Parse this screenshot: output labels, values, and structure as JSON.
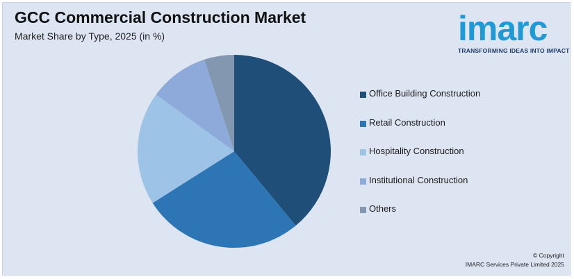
{
  "header": {
    "title": "GCC Commercial Construction Market",
    "subtitle": "Market Share by Type, 2025 (in %)"
  },
  "logo": {
    "word": "imarc",
    "tagline": "TRANSFORMING IDEAS INTO IMPACT",
    "color": "#1f9ad6",
    "tag_color": "#1f3a6e"
  },
  "chart_data": {
    "type": "pie",
    "title": "GCC Commercial Construction Market",
    "subtitle": "Market Share by Type, 2025 (in %)",
    "start_angle_deg": 0,
    "direction": "clockwise",
    "legend_position": "right",
    "slices": [
      {
        "label": "Office Building Construction",
        "value": 39,
        "color": "#1f4e79"
      },
      {
        "label": "Retail Construction",
        "value": 27,
        "color": "#2e75b6"
      },
      {
        "label": "Hospitality Construction",
        "value": 19,
        "color": "#9dc3e6"
      },
      {
        "label": "Institutional Construction",
        "value": 10,
        "color": "#8eaadb"
      },
      {
        "label": "Others",
        "value": 5,
        "color": "#8497b0"
      }
    ]
  },
  "footer": {
    "copyright_line1": "© Copyright",
    "copyright_line2": "IMARC Services Private Limited 2025"
  }
}
